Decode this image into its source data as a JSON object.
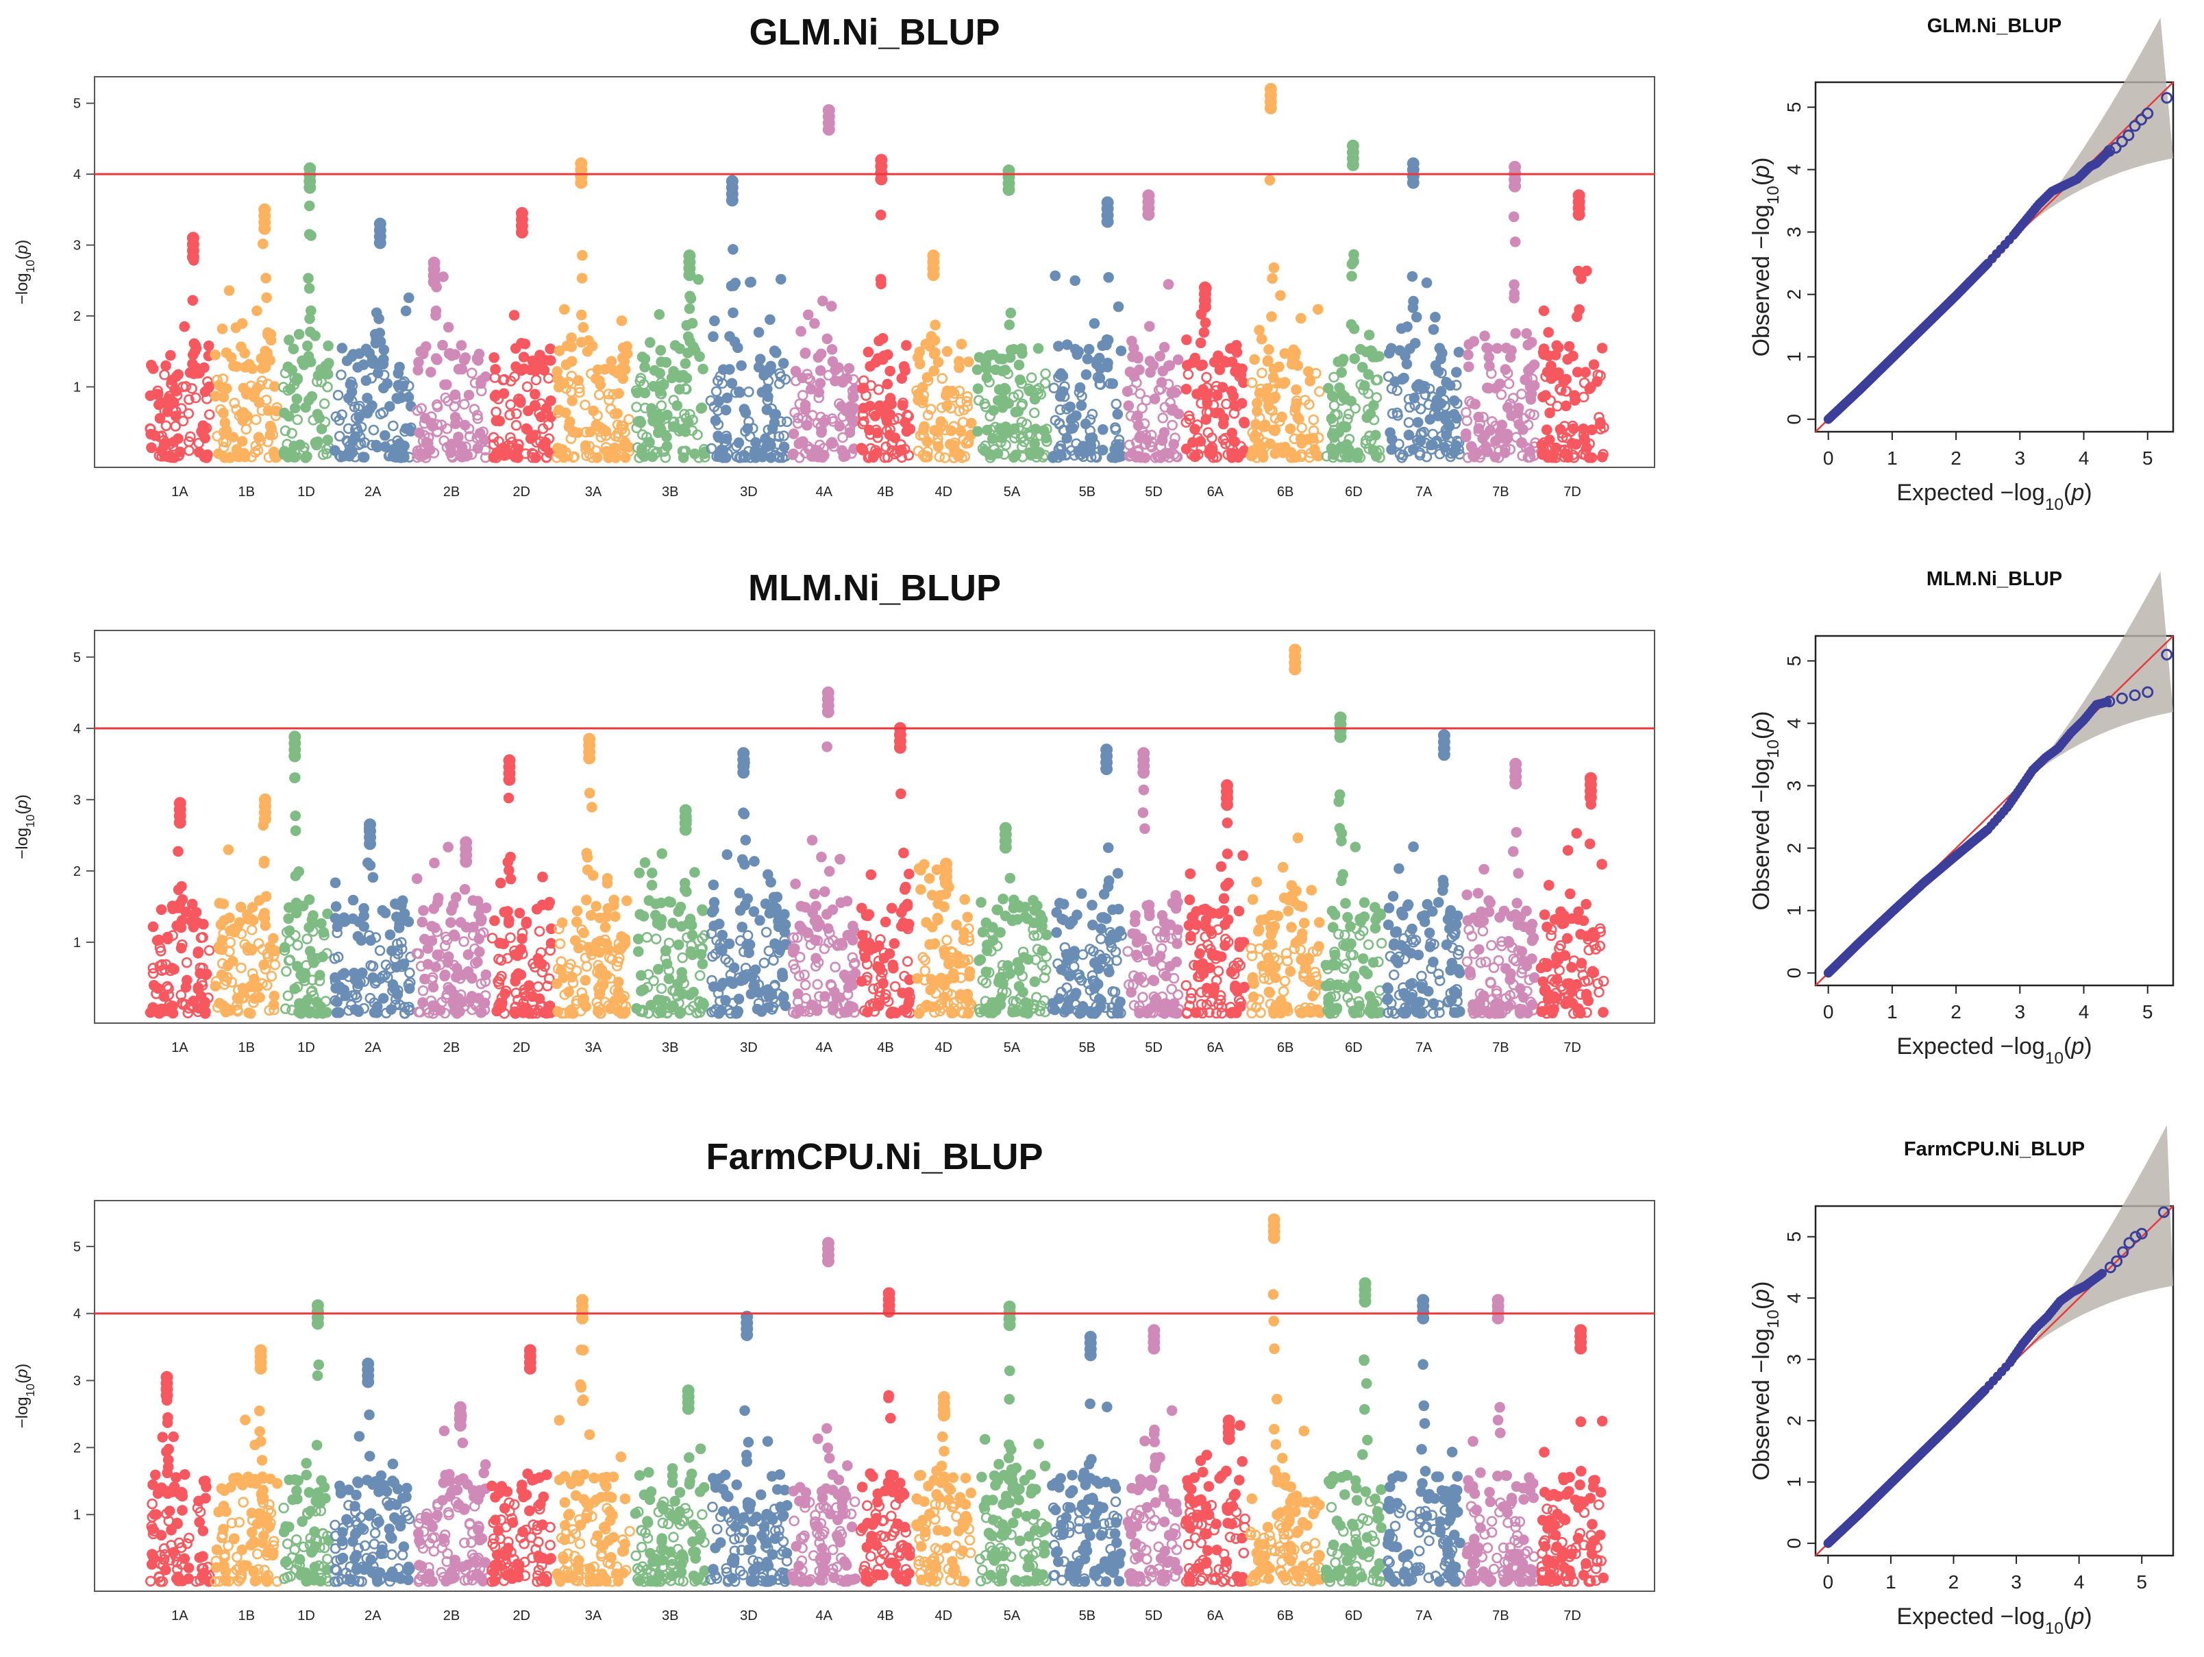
{
  "chart_data": [
    {
      "type": "scatter",
      "subtype": "manhattan",
      "title": "GLM.Ni_BLUP",
      "ylabel": "-log10(p)",
      "ylabel_parts": [
        "−log",
        "10",
        "(",
        "p",
        ")"
      ],
      "xlabel": "",
      "ylim": [
        0,
        5.2
      ],
      "yticks": [
        1,
        2,
        3,
        4,
        5
      ],
      "threshold": 4,
      "threshold_color": "#e8393c",
      "chromosomes": [
        "1A",
        "1B",
        "1D",
        "2A",
        "2B",
        "2D",
        "3A",
        "3B",
        "3D",
        "4A",
        "4B",
        "4D",
        "5A",
        "5B",
        "5D",
        "6A",
        "6B",
        "6D",
        "7A",
        "7B",
        "7D"
      ],
      "palette": [
        "#f7585f",
        "#fdb25f",
        "#7fbc84",
        "#6a8db5",
        "#cf8ab8"
      ],
      "peaks": [
        3.1,
        3.5,
        4.08,
        3.3,
        2.75,
        3.45,
        4.15,
        2.85,
        3.9,
        4.9,
        4.2,
        2.85,
        4.05,
        3.6,
        3.7,
        2.4,
        5.2,
        4.4,
        4.15,
        4.1,
        3.7
      ]
    },
    {
      "type": "scatter",
      "subtype": "manhattan",
      "title": "MLM.Ni_BLUP",
      "ylabel": "-log10(p)",
      "ylabel_parts": [
        "−log",
        "10",
        "(",
        "p",
        ")"
      ],
      "xlabel": "",
      "ylim": [
        0,
        5.2
      ],
      "yticks": [
        1,
        2,
        3,
        4,
        5
      ],
      "threshold": 4,
      "threshold_color": "#e8393c",
      "chromosomes": [
        "1A",
        "1B",
        "1D",
        "2A",
        "2B",
        "2D",
        "3A",
        "3B",
        "3D",
        "4A",
        "4B",
        "4D",
        "5A",
        "5B",
        "5D",
        "6A",
        "6B",
        "6D",
        "7A",
        "7B",
        "7D"
      ],
      "palette": [
        "#f7585f",
        "#fdb25f",
        "#7fbc84",
        "#6a8db5",
        "#cf8ab8"
      ],
      "peaks": [
        2.95,
        3.0,
        3.88,
        2.65,
        2.4,
        3.55,
        3.85,
        2.85,
        3.65,
        4.5,
        4.0,
        2.1,
        2.6,
        3.7,
        3.65,
        3.2,
        5.1,
        4.15,
        3.9,
        3.5,
        3.3
      ]
    },
    {
      "type": "scatter",
      "subtype": "manhattan",
      "title": "FarmCPU.Ni_BLUP",
      "ylabel": "-log10(p)",
      "ylabel_parts": [
        "−log",
        "10",
        "(",
        "p",
        ")"
      ],
      "xlabel": "",
      "ylim": [
        0,
        5.5
      ],
      "yticks": [
        1,
        2,
        3,
        4,
        5
      ],
      "threshold": 4,
      "threshold_color": "#e8393c",
      "chromosomes": [
        "1A",
        "1B",
        "1D",
        "2A",
        "2B",
        "2D",
        "3A",
        "3B",
        "3D",
        "4A",
        "4B",
        "4D",
        "5A",
        "5B",
        "5D",
        "6A",
        "6B",
        "6D",
        "7A",
        "7B",
        "7D"
      ],
      "palette": [
        "#f7585f",
        "#fdb25f",
        "#7fbc84",
        "#6a8db5",
        "#cf8ab8"
      ],
      "peaks": [
        3.05,
        3.45,
        4.12,
        3.25,
        2.6,
        3.45,
        4.2,
        2.85,
        3.95,
        5.05,
        4.3,
        2.75,
        4.1,
        3.65,
        3.75,
        2.4,
        5.4,
        4.45,
        4.2,
        4.2,
        3.75
      ]
    },
    {
      "type": "scatter",
      "subtype": "qq",
      "title": "GLM.Ni_BLUP",
      "xlabel": "Expected  -log10(p)",
      "ylabel": "Observed  -log10(p)",
      "xlabel_parts": [
        "Expected  −log",
        "10",
        "(",
        "p",
        ")"
      ],
      "ylabel_parts": [
        "Observed  −log",
        "10",
        "(",
        "p",
        ")"
      ],
      "xlim": [
        -0.2,
        5.4
      ],
      "ylim": [
        -0.2,
        5.4
      ],
      "xticks": [
        0,
        1,
        2,
        3,
        4,
        5
      ],
      "yticks": [
        0,
        1,
        2,
        3,
        4,
        5
      ],
      "points_x": [
        0,
        0.5,
        1,
        1.5,
        2,
        2.5,
        2.9,
        3.1,
        3.3,
        3.5,
        3.7,
        3.9,
        4.0,
        4.1,
        4.2,
        4.3,
        4.4,
        4.5,
        4.6,
        4.7,
        4.8,
        4.9,
        5.0,
        5.3
      ],
      "points_y": [
        0,
        0.48,
        0.98,
        1.48,
        1.98,
        2.5,
        2.95,
        3.2,
        3.45,
        3.65,
        3.75,
        3.85,
        3.95,
        4.05,
        4.1,
        4.2,
        4.3,
        4.35,
        4.45,
        4.55,
        4.7,
        4.8,
        4.9,
        5.15
      ]
    },
    {
      "type": "scatter",
      "subtype": "qq",
      "title": "MLM.Ni_BLUP",
      "xlabel": "Expected  -log10(p)",
      "ylabel": "Observed  -log10(p)",
      "xlabel_parts": [
        "Expected  −log",
        "10",
        "(",
        "p",
        ")"
      ],
      "ylabel_parts": [
        "Observed  −log",
        "10",
        "(",
        "p",
        ")"
      ],
      "xlim": [
        -0.2,
        5.4
      ],
      "ylim": [
        -0.2,
        5.4
      ],
      "xticks": [
        0,
        1,
        2,
        3,
        4,
        5
      ],
      "yticks": [
        0,
        1,
        2,
        3,
        4,
        5
      ],
      "points_x": [
        0,
        0.5,
        1,
        1.5,
        2,
        2.5,
        2.8,
        3.0,
        3.2,
        3.4,
        3.6,
        3.8,
        4.0,
        4.2,
        4.4,
        4.6,
        4.8,
        5.0,
        5.3
      ],
      "points_y": [
        0,
        0.5,
        0.98,
        1.45,
        1.88,
        2.3,
        2.65,
        2.95,
        3.25,
        3.45,
        3.6,
        3.85,
        4.05,
        4.3,
        4.35,
        4.4,
        4.45,
        4.5,
        5.1
      ]
    },
    {
      "type": "scatter",
      "subtype": "qq",
      "title": "FarmCPU.Ni_BLUP",
      "xlabel": "Expected  -log10(p)",
      "ylabel": "Observed  -log10(p)",
      "xlabel_parts": [
        "Expected  −log",
        "10",
        "(",
        "p",
        ")"
      ],
      "ylabel_parts": [
        "Observed  −log",
        "10",
        "(",
        "p",
        ")"
      ],
      "xlim": [
        -0.2,
        5.5
      ],
      "ylim": [
        -0.2,
        5.5
      ],
      "xticks": [
        0,
        1,
        2,
        3,
        4,
        5
      ],
      "yticks": [
        0,
        1,
        2,
        3,
        4,
        5
      ],
      "points_x": [
        0,
        0.5,
        1,
        1.5,
        2,
        2.5,
        2.9,
        3.1,
        3.3,
        3.5,
        3.7,
        3.9,
        4.1,
        4.3,
        4.5,
        4.6,
        4.7,
        4.8,
        4.9,
        5.0,
        5.35
      ],
      "points_y": [
        0,
        0.48,
        0.98,
        1.48,
        1.98,
        2.5,
        2.95,
        3.25,
        3.5,
        3.7,
        3.95,
        4.1,
        4.2,
        4.35,
        4.5,
        4.6,
        4.75,
        4.9,
        5.0,
        5.05,
        5.4
      ]
    }
  ]
}
